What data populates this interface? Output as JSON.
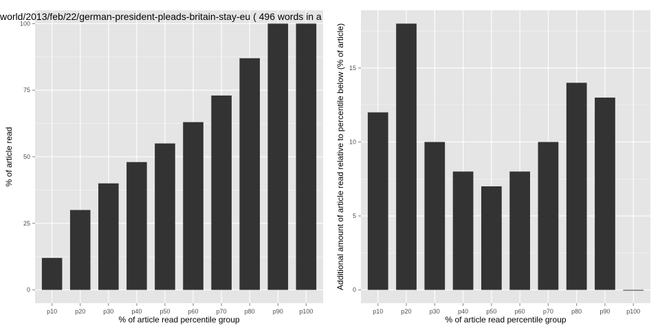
{
  "title": "world/2013/feb/22/german-president-pleads-britain-stay-eu ( 496 words in a",
  "colors": {
    "panel": "#e5e5e5",
    "grid_major": "#ffffff",
    "grid_minor": "#f2f2f2",
    "bar": "#333333",
    "tick_text": "#4d4d4d"
  },
  "chart_data": [
    {
      "type": "bar",
      "categories": [
        "p10",
        "p20",
        "p30",
        "p40",
        "p50",
        "p60",
        "p70",
        "p80",
        "p90",
        "p100"
      ],
      "values": [
        12,
        30,
        40,
        48,
        55,
        63,
        73,
        87,
        100,
        100
      ],
      "xlabel": "% of article read percentile group",
      "ylabel": "% of article read",
      "ylim": [
        -5,
        105
      ],
      "yticks": [
        0,
        25,
        50,
        75,
        100
      ],
      "grid": true
    },
    {
      "type": "bar",
      "categories": [
        "p10",
        "p20",
        "p30",
        "p40",
        "p50",
        "p60",
        "p70",
        "p80",
        "p90",
        "p100"
      ],
      "values": [
        12,
        18,
        10,
        8,
        7,
        8,
        10,
        14,
        13,
        0
      ],
      "xlabel": "% of article read percentile group",
      "ylabel": "Additional amount of article read relative to percentile below (% of article)",
      "ylim": [
        -0.9,
        18.9
      ],
      "yticks": [
        0,
        5,
        10,
        15
      ],
      "grid": true
    }
  ]
}
